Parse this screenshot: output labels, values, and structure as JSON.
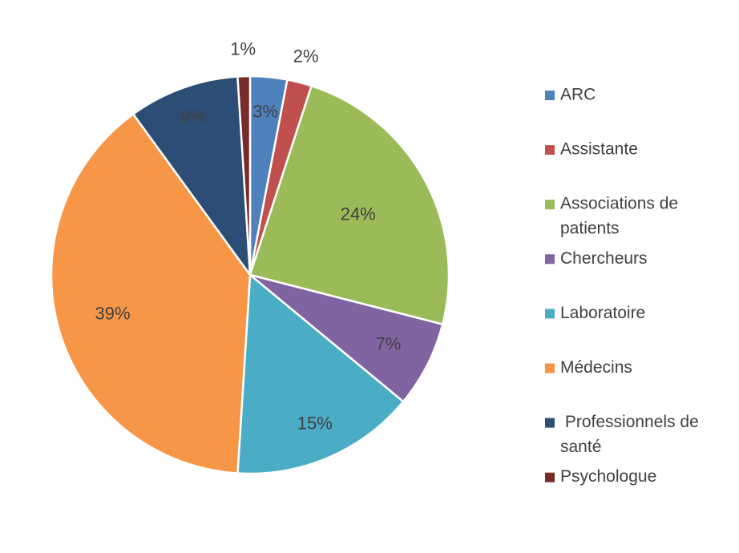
{
  "chart_data": {
    "type": "pie",
    "title": "",
    "legend_position": "right",
    "categories": [
      "ARC",
      "Assistante",
      "Associations de patients",
      "Chercheurs",
      "Laboratoire",
      "Médecins",
      " Professionnels de santé",
      "Psychologue"
    ],
    "values": [
      3,
      2,
      24,
      7,
      15,
      39,
      9,
      1
    ],
    "data_labels": [
      "3%",
      "2%",
      "24%",
      "7%",
      "15%",
      "39%",
      "9%",
      "1%"
    ],
    "legend_lines": [
      [
        "ARC"
      ],
      [
        "Assistante"
      ],
      [
        "Associations de",
        "patients"
      ],
      [
        "Chercheurs"
      ],
      [
        "Laboratoire"
      ],
      [
        "Médecins"
      ],
      [
        " Professionnels de",
        "santé"
      ],
      [
        "Psychologue"
      ]
    ],
    "colors": [
      "#4f81bd",
      "#c0504d",
      "#9bbb59",
      "#8064a2",
      "#4bacc6",
      "#f79646",
      "#2c4d75",
      "#772c2a"
    ]
  }
}
